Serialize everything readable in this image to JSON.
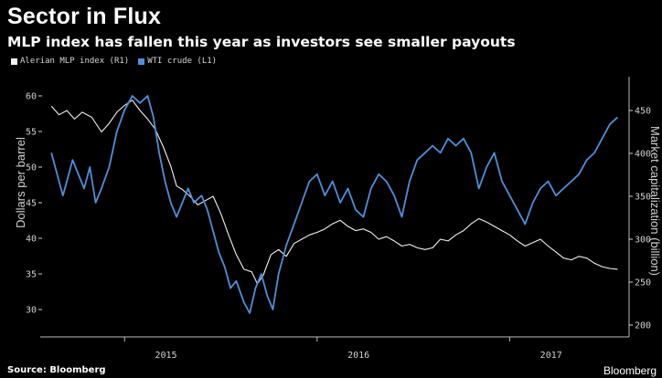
{
  "header": {
    "title": "Sector in Flux",
    "subtitle": "MLP index has fallen this year as investors see smaller payouts"
  },
  "footer": {
    "source": "Source: Bloomberg",
    "brand": "Bloomberg"
  },
  "chart_data": {
    "type": "line",
    "title": "Sector in Flux",
    "subtitle": "MLP index has fallen this year as investors see smaller payouts",
    "x_ticks": [
      "2015",
      "2016",
      "2017"
    ],
    "x_range": [
      2014.6,
      2017.62
    ],
    "left_axis": {
      "label": "Dollars per barrel",
      "ylim": [
        28,
        62
      ],
      "ticks": [
        30,
        35,
        40,
        45,
        50,
        55,
        60
      ]
    },
    "right_axis": {
      "label": "Market capitalization (billion)",
      "ylim": [
        200,
        475
      ],
      "ticks": [
        200,
        250,
        300,
        350,
        400,
        450
      ]
    },
    "grid": false,
    "legend_position": "top-left",
    "colors": {
      "mlp": "#f2f2f2",
      "wti": "#4f8fd9"
    },
    "series": [
      {
        "name": "Alerian MLP index (R1)",
        "axis": "right",
        "points": [
          [
            2014.62,
            455
          ],
          [
            2014.66,
            445
          ],
          [
            2014.7,
            450
          ],
          [
            2014.74,
            440
          ],
          [
            2014.78,
            448
          ],
          [
            2014.83,
            442
          ],
          [
            2014.88,
            425
          ],
          [
            2014.92,
            435
          ],
          [
            2014.96,
            448
          ],
          [
            2015.0,
            456
          ],
          [
            2015.04,
            462
          ],
          [
            2015.08,
            450
          ],
          [
            2015.12,
            440
          ],
          [
            2015.16,
            428
          ],
          [
            2015.2,
            408
          ],
          [
            2015.24,
            385
          ],
          [
            2015.27,
            362
          ],
          [
            2015.3,
            358
          ],
          [
            2015.34,
            350
          ],
          [
            2015.38,
            340
          ],
          [
            2015.42,
            345
          ],
          [
            2015.46,
            350
          ],
          [
            2015.5,
            330
          ],
          [
            2015.54,
            305
          ],
          [
            2015.58,
            282
          ],
          [
            2015.62,
            265
          ],
          [
            2015.66,
            262
          ],
          [
            2015.69,
            248
          ],
          [
            2015.72,
            258
          ],
          [
            2015.76,
            282
          ],
          [
            2015.8,
            288
          ],
          [
            2015.84,
            280
          ],
          [
            2015.88,
            295
          ],
          [
            2015.92,
            300
          ],
          [
            2015.96,
            305
          ],
          [
            2016.0,
            308
          ],
          [
            2016.04,
            312
          ],
          [
            2016.08,
            318
          ],
          [
            2016.12,
            322
          ],
          [
            2016.16,
            315
          ],
          [
            2016.2,
            310
          ],
          [
            2016.24,
            312
          ],
          [
            2016.28,
            308
          ],
          [
            2016.32,
            300
          ],
          [
            2016.36,
            303
          ],
          [
            2016.4,
            298
          ],
          [
            2016.44,
            292
          ],
          [
            2016.48,
            294
          ],
          [
            2016.52,
            290
          ],
          [
            2016.56,
            288
          ],
          [
            2016.6,
            290
          ],
          [
            2016.64,
            300
          ],
          [
            2016.68,
            298
          ],
          [
            2016.72,
            305
          ],
          [
            2016.76,
            310
          ],
          [
            2016.8,
            318
          ],
          [
            2016.84,
            324
          ],
          [
            2016.88,
            320
          ],
          [
            2016.92,
            315
          ],
          [
            2016.96,
            310
          ],
          [
            2017.0,
            305
          ],
          [
            2017.04,
            298
          ],
          [
            2017.08,
            292
          ],
          [
            2017.12,
            296
          ],
          [
            2017.16,
            300
          ],
          [
            2017.2,
            292
          ],
          [
            2017.24,
            285
          ],
          [
            2017.28,
            278
          ],
          [
            2017.32,
            276
          ],
          [
            2017.36,
            280
          ],
          [
            2017.4,
            278
          ],
          [
            2017.44,
            272
          ],
          [
            2017.48,
            268
          ],
          [
            2017.52,
            266
          ],
          [
            2017.56,
            265
          ]
        ]
      },
      {
        "name": "WTI crude (L1)",
        "axis": "left",
        "points": [
          [
            2014.62,
            52
          ],
          [
            2014.65,
            49
          ],
          [
            2014.68,
            46
          ],
          [
            2014.7,
            48
          ],
          [
            2014.73,
            51
          ],
          [
            2014.76,
            49
          ],
          [
            2014.79,
            47
          ],
          [
            2014.82,
            50
          ],
          [
            2014.85,
            45
          ],
          [
            2014.88,
            47
          ],
          [
            2014.92,
            50
          ],
          [
            2014.96,
            55
          ],
          [
            2015.0,
            58
          ],
          [
            2015.04,
            60
          ],
          [
            2015.08,
            59
          ],
          [
            2015.12,
            60
          ],
          [
            2015.15,
            57
          ],
          [
            2015.18,
            52
          ],
          [
            2015.21,
            48
          ],
          [
            2015.24,
            45
          ],
          [
            2015.27,
            43
          ],
          [
            2015.3,
            45
          ],
          [
            2015.33,
            47
          ],
          [
            2015.36,
            45
          ],
          [
            2015.4,
            46
          ],
          [
            2015.43,
            44
          ],
          [
            2015.46,
            41
          ],
          [
            2015.49,
            38
          ],
          [
            2015.52,
            36
          ],
          [
            2015.55,
            33
          ],
          [
            2015.58,
            34
          ],
          [
            2015.62,
            31
          ],
          [
            2015.65,
            29.5
          ],
          [
            2015.68,
            33
          ],
          [
            2015.71,
            35
          ],
          [
            2015.74,
            32
          ],
          [
            2015.77,
            30
          ],
          [
            2015.8,
            35
          ],
          [
            2015.84,
            39
          ],
          [
            2015.88,
            42
          ],
          [
            2015.92,
            45
          ],
          [
            2015.96,
            48
          ],
          [
            2016.0,
            49
          ],
          [
            2016.04,
            46
          ],
          [
            2016.08,
            48
          ],
          [
            2016.12,
            45
          ],
          [
            2016.16,
            47
          ],
          [
            2016.2,
            44
          ],
          [
            2016.24,
            43
          ],
          [
            2016.28,
            47
          ],
          [
            2016.32,
            49
          ],
          [
            2016.36,
            48
          ],
          [
            2016.4,
            46
          ],
          [
            2016.44,
            43
          ],
          [
            2016.48,
            48
          ],
          [
            2016.52,
            51
          ],
          [
            2016.56,
            52
          ],
          [
            2016.6,
            53
          ],
          [
            2016.64,
            52
          ],
          [
            2016.68,
            54
          ],
          [
            2016.72,
            53
          ],
          [
            2016.76,
            54
          ],
          [
            2016.8,
            52
          ],
          [
            2016.84,
            47
          ],
          [
            2016.88,
            50
          ],
          [
            2016.92,
            52
          ],
          [
            2016.96,
            48
          ],
          [
            2017.0,
            46
          ],
          [
            2017.04,
            44
          ],
          [
            2017.08,
            42
          ],
          [
            2017.12,
            45
          ],
          [
            2017.16,
            47
          ],
          [
            2017.2,
            48
          ],
          [
            2017.24,
            46
          ],
          [
            2017.28,
            47
          ],
          [
            2017.32,
            48
          ],
          [
            2017.36,
            49
          ],
          [
            2017.4,
            51
          ],
          [
            2017.44,
            52
          ],
          [
            2017.48,
            54
          ],
          [
            2017.52,
            56
          ],
          [
            2017.56,
            57
          ]
        ]
      }
    ]
  }
}
